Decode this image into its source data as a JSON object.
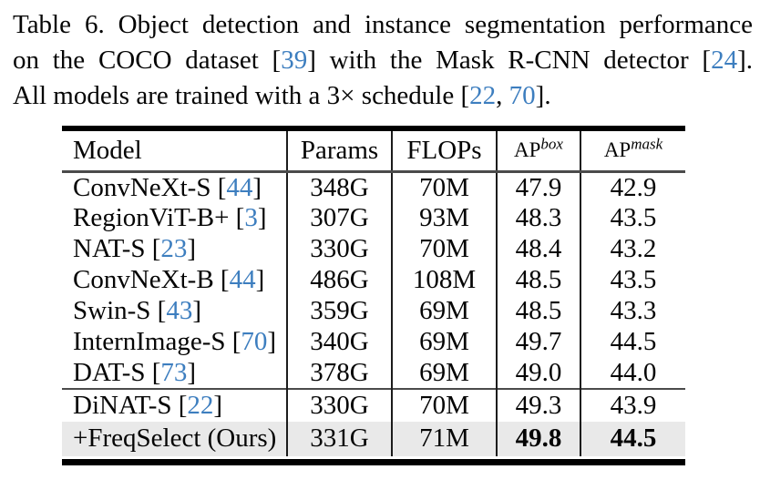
{
  "colors": {
    "citation_blue": "#3d7ebf",
    "highlight_row_bg": "#e9e9e9",
    "thick_rule": "#000000",
    "mid_rule": "#4b4b4b"
  },
  "caption": {
    "lines": [
      {
        "justify_last": true,
        "segments": [
          {
            "t": "Table 6. Object detection and instance segmentation performance"
          }
        ]
      },
      {
        "justify_last": true,
        "segments": [
          {
            "t": "on the COCO dataset ["
          },
          {
            "t": "39",
            "cite": true
          },
          {
            "t": "] with the Mask R-CNN detector ["
          },
          {
            "t": "24",
            "cite": true
          },
          {
            "t": "]."
          }
        ]
      },
      {
        "justify_last": false,
        "segments": [
          {
            "t": "All models are trained with a 3× schedule ["
          },
          {
            "t": "22",
            "cite": true
          },
          {
            "t": ", "
          },
          {
            "t": "70",
            "cite": true
          },
          {
            "t": "]."
          }
        ]
      }
    ]
  },
  "table": {
    "headers": [
      {
        "label": "Model"
      },
      {
        "label": "Params"
      },
      {
        "label": "FLOPs"
      },
      {
        "label": "AP",
        "sup": "box"
      },
      {
        "label": "AP",
        "sup": "mask"
      }
    ],
    "groups": [
      {
        "rows": [
          {
            "model": [
              {
                "t": "ConvNeXt-S ["
              },
              {
                "t": "44",
                "cite": true
              },
              {
                "t": "]"
              }
            ],
            "params": "348G",
            "flops": "70M",
            "ap_box": "47.9",
            "ap_mask": "42.9"
          },
          {
            "model": [
              {
                "t": "RegionViT-B+ ["
              },
              {
                "t": "3",
                "cite": true
              },
              {
                "t": "]"
              }
            ],
            "params": "307G",
            "flops": "93M",
            "ap_box": "48.3",
            "ap_mask": "43.5"
          },
          {
            "model": [
              {
                "t": "NAT-S ["
              },
              {
                "t": "23",
                "cite": true
              },
              {
                "t": "]"
              }
            ],
            "params": "330G",
            "flops": "70M",
            "ap_box": "48.4",
            "ap_mask": "43.2"
          },
          {
            "model": [
              {
                "t": "ConvNeXt-B ["
              },
              {
                "t": "44",
                "cite": true
              },
              {
                "t": "]"
              }
            ],
            "params": "486G",
            "flops": "108M",
            "ap_box": "48.5",
            "ap_mask": "43.5"
          },
          {
            "model": [
              {
                "t": "Swin-S ["
              },
              {
                "t": "43",
                "cite": true
              },
              {
                "t": "]"
              }
            ],
            "params": "359G",
            "flops": "69M",
            "ap_box": "48.5",
            "ap_mask": "43.3"
          },
          {
            "model": [
              {
                "t": "InternImage-S ["
              },
              {
                "t": "70",
                "cite": true
              },
              {
                "t": "]"
              }
            ],
            "params": "340G",
            "flops": "69M",
            "ap_box": "49.7",
            "ap_mask": "44.5"
          },
          {
            "model": [
              {
                "t": "DAT-S ["
              },
              {
                "t": "73",
                "cite": true
              },
              {
                "t": "]"
              }
            ],
            "params": "378G",
            "flops": "69M",
            "ap_box": "49.0",
            "ap_mask": "44.0"
          }
        ]
      },
      {
        "rows": [
          {
            "model": [
              {
                "t": "DiNAT-S ["
              },
              {
                "t": "22",
                "cite": true
              },
              {
                "t": "]"
              }
            ],
            "params": "330G",
            "flops": "70M",
            "ap_box": "49.3",
            "ap_mask": "43.9"
          },
          {
            "model": [
              {
                "t": "+FreqSelect (Ours)"
              }
            ],
            "params": "331G",
            "flops": "71M",
            "ap_box": "49.8",
            "ap_mask": "44.5",
            "highlight": true,
            "bold_ap": true
          }
        ]
      }
    ]
  }
}
